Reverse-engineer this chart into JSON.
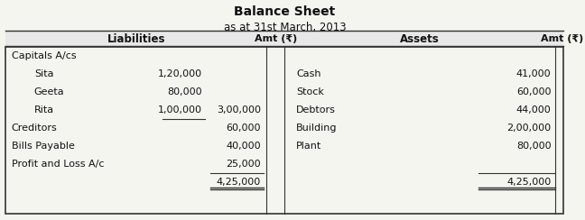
{
  "title": "Balance Sheet",
  "subtitle": "as at 31st March, 2013",
  "header_liabilities": "Liabilities",
  "header_amt1": "Amt (₹)",
  "header_assets": "Assets",
  "header_amt2": "Amt (₹)",
  "liabilities": [
    {
      "label": "Capitals A/cs",
      "indent": false,
      "sub_amt": "",
      "amt": ""
    },
    {
      "label": "Sita",
      "indent": true,
      "sub_amt": "1,20,000",
      "amt": ""
    },
    {
      "label": "Geeta",
      "indent": true,
      "sub_amt": "80,000",
      "amt": ""
    },
    {
      "label": "Rita",
      "indent": true,
      "sub_amt": "1,00,000",
      "amt": "3,00,000"
    },
    {
      "label": "Creditors",
      "indent": false,
      "sub_amt": "",
      "amt": "60,000"
    },
    {
      "label": "Bills Payable",
      "indent": false,
      "sub_amt": "",
      "amt": "40,000"
    },
    {
      "label": "Profit and Loss A/c",
      "indent": false,
      "sub_amt": "",
      "amt": "25,000"
    },
    {
      "label": "",
      "indent": false,
      "sub_amt": "",
      "amt": "4,25,000"
    }
  ],
  "assets": [
    {
      "label": "",
      "amt": ""
    },
    {
      "label": "Cash",
      "amt": "41,000"
    },
    {
      "label": "Stock",
      "amt": "60,000"
    },
    {
      "label": "Debtors",
      "amt": "44,000"
    },
    {
      "label": "Building",
      "amt": "2,00,000"
    },
    {
      "label": "Plant",
      "amt": "80,000"
    },
    {
      "label": "",
      "amt": ""
    },
    {
      "label": "",
      "amt": "4,25,000"
    }
  ],
  "bg_color": "#f5f5f0",
  "header_bg": "#e8e8e8",
  "line_color": "#333333",
  "text_color": "#111111"
}
